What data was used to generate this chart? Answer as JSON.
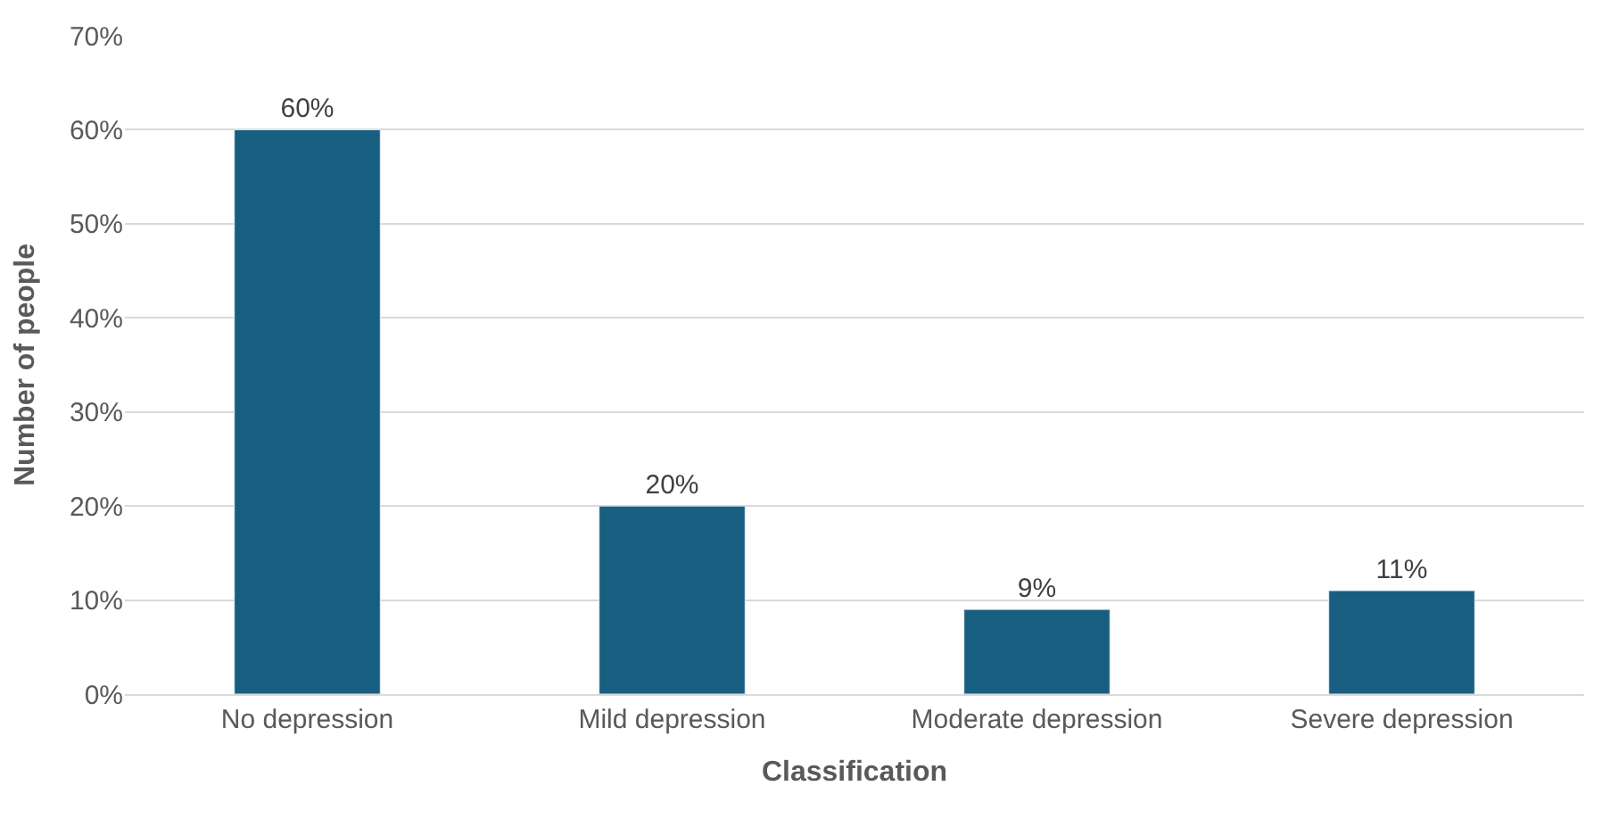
{
  "chart_data": {
    "type": "bar",
    "xlabel": "Classification",
    "ylabel": "Number of people",
    "categories": [
      "No depression",
      "Mild depression",
      "Moderate depression",
      "Severe depression"
    ],
    "values": [
      60,
      20,
      9,
      11
    ],
    "color": "#175e80",
    "value_labels": [
      "60%",
      "20%",
      "9%",
      "11%"
    ],
    "ylim": [
      0,
      70
    ],
    "yticks": [
      {
        "value": 0,
        "label": "0%"
      },
      {
        "value": 10,
        "label": "10%"
      },
      {
        "value": 20,
        "label": "20%"
      },
      {
        "value": 30,
        "label": "30%"
      },
      {
        "value": 40,
        "label": "40%"
      },
      {
        "value": 50,
        "label": "50%"
      },
      {
        "value": 60,
        "label": "60%"
      },
      {
        "value": 70,
        "label": "70%"
      }
    ],
    "grid": "y"
  }
}
